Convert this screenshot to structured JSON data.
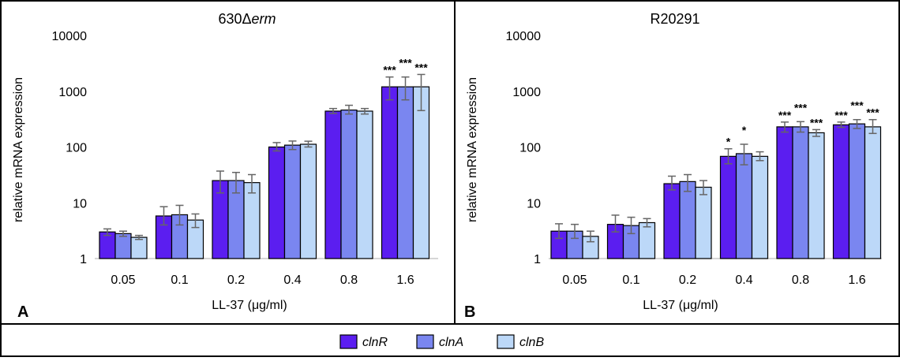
{
  "colors": {
    "clnR": "#5b1ef0",
    "clnA": "#7a86f0",
    "clnB": "#bcd8f8",
    "error": "#666666"
  },
  "legend": {
    "items": [
      {
        "key": "clnR",
        "label": "clnR"
      },
      {
        "key": "clnA",
        "label": "clnA"
      },
      {
        "key": "clnB",
        "label": "clnB"
      }
    ]
  },
  "chart_data": [
    {
      "type": "bar",
      "panel_letter": "A",
      "title_main": "630Δ",
      "title_italic": "erm",
      "xlabel": "LL-37 (μg/ml)",
      "ylabel": "relative mRNA expression",
      "y_scale": "log",
      "ylim": [
        1,
        10000
      ],
      "y_ticks": [
        "1",
        "10",
        "100",
        "1000",
        "10000"
      ],
      "categories": [
        "0.05",
        "0.1",
        "0.2",
        "0.4",
        "0.8",
        "1.6"
      ],
      "series": [
        {
          "name": "clnR",
          "values": [
            3.0,
            5.8,
            25,
            100,
            440,
            1200
          ],
          "err_low": [
            2.6,
            4.0,
            15,
            85,
            400,
            700
          ],
          "err_high": [
            3.4,
            8.5,
            37,
            120,
            490,
            1800
          ],
          "sig": [
            "",
            "",
            "",
            "",
            "",
            "***"
          ]
        },
        {
          "name": "clnA",
          "values": [
            2.8,
            6.1,
            25,
            108,
            460,
            1200
          ],
          "err_low": [
            2.5,
            4.0,
            15,
            90,
            390,
            700
          ],
          "err_high": [
            3.1,
            9.0,
            35,
            128,
            560,
            1800
          ],
          "sig": [
            "",
            "",
            "",
            "",
            "",
            "***"
          ]
        },
        {
          "name": "clnB",
          "values": [
            2.4,
            4.9,
            23,
            112,
            440,
            1200
          ],
          "err_low": [
            2.2,
            3.6,
            15,
            100,
            390,
            450
          ],
          "err_high": [
            2.6,
            6.3,
            32,
            127,
            490,
            2000
          ],
          "sig": [
            "",
            "",
            "",
            "",
            "",
            "***"
          ]
        }
      ]
    },
    {
      "type": "bar",
      "panel_letter": "B",
      "title_main": "R20291",
      "title_italic": "",
      "xlabel": "LL-37 (μg/ml)",
      "ylabel": "relative mRNA expression",
      "y_scale": "log",
      "ylim": [
        1,
        10000
      ],
      "y_ticks": [
        "1",
        "10",
        "100",
        "1000",
        "10000"
      ],
      "categories": [
        "0.05",
        "0.1",
        "0.2",
        "0.4",
        "0.8",
        "1.6"
      ],
      "series": [
        {
          "name": "clnR",
          "values": [
            3.1,
            4.1,
            22,
            68,
            230,
            250
          ],
          "err_low": [
            2.3,
            3.0,
            17,
            50,
            185,
            225
          ],
          "err_high": [
            4.2,
            6.0,
            30,
            93,
            280,
            280
          ],
          "sig": [
            "",
            "",
            "",
            "*",
            "***",
            "***"
          ]
        },
        {
          "name": "clnA",
          "values": [
            3.1,
            3.9,
            24,
            76,
            230,
            260
          ],
          "err_low": [
            2.3,
            2.8,
            16,
            48,
            185,
            215
          ],
          "err_high": [
            4.1,
            5.5,
            32,
            112,
            285,
            310
          ],
          "sig": [
            "",
            "",
            "",
            "*",
            "***",
            "***"
          ]
        },
        {
          "name": "clnB",
          "values": [
            2.5,
            4.4,
            19,
            68,
            180,
            230
          ],
          "err_low": [
            2.0,
            3.7,
            14,
            57,
            155,
            175
          ],
          "err_high": [
            3.1,
            5.2,
            25,
            82,
            205,
            310
          ],
          "sig": [
            "",
            "",
            "",
            "",
            "***",
            "***"
          ]
        }
      ]
    }
  ]
}
